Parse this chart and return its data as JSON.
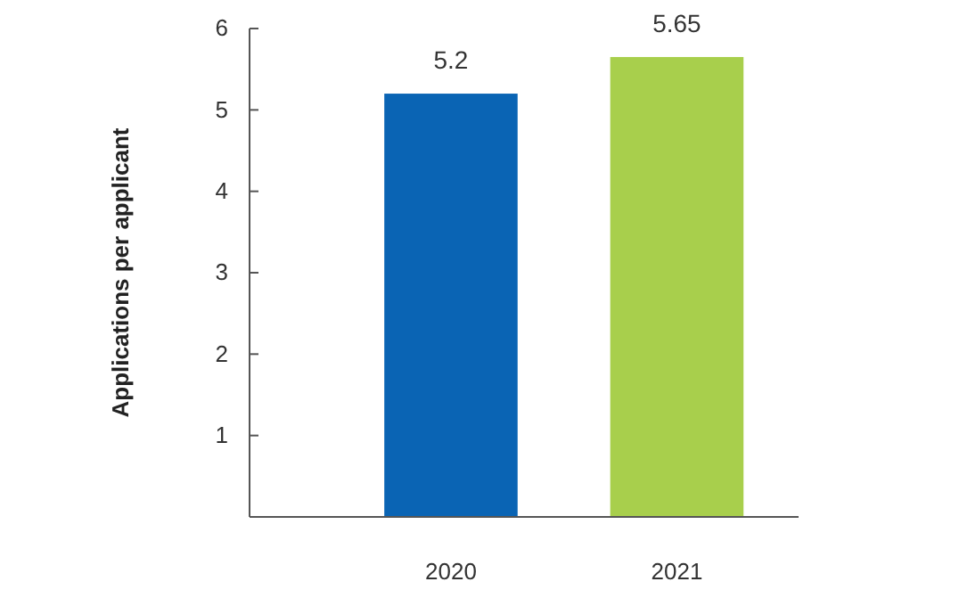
{
  "chart_data": {
    "type": "bar",
    "ylabel": "Applications per applicant",
    "categories": [
      "2020",
      "2021"
    ],
    "values": [
      5.2,
      5.65
    ],
    "colors": [
      "#0a64b4",
      "#a8cf4c"
    ],
    "ylim": [
      0,
      6
    ],
    "yticks": [
      1,
      2,
      3,
      4,
      5,
      6
    ],
    "data_labels": true,
    "grid": false
  }
}
